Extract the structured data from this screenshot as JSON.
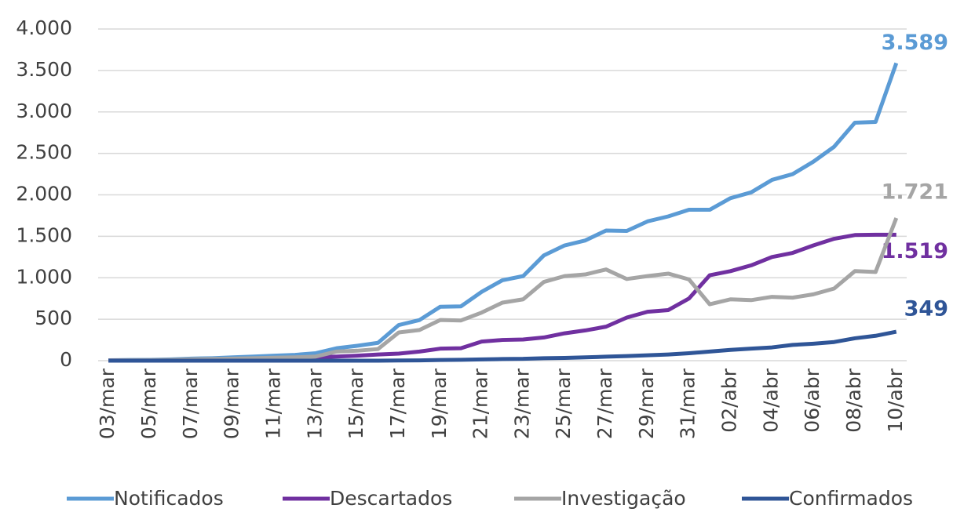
{
  "chart_data": {
    "type": "line",
    "categories": [
      "03/mar",
      null,
      "05/mar",
      null,
      "07/mar",
      null,
      "09/mar",
      null,
      "11/mar",
      null,
      "13/mar",
      null,
      "15/mar",
      null,
      "17/mar",
      null,
      "19/mar",
      null,
      "21/mar",
      null,
      "23/mar",
      null,
      "25/mar",
      null,
      "27/mar",
      null,
      "29/mar",
      null,
      "31/mar",
      null,
      "02/abr",
      null,
      "04/abr",
      null,
      "06/abr",
      null,
      "08/abr",
      null,
      "10/abr"
    ],
    "series": [
      {
        "name": "Notificados",
        "color": "#5b9bd5",
        "values": [
          5,
          8,
          10,
          15,
          25,
          30,
          40,
          50,
          60,
          70,
          90,
          150,
          180,
          215,
          430,
          490,
          650,
          655,
          830,
          970,
          1020,
          1270,
          1390,
          1450,
          1570,
          1565,
          1680,
          1740,
          1820,
          1820,
          1960,
          2030,
          2180,
          2250,
          2400,
          2580,
          2870,
          2880,
          3589
        ],
        "value_labels": [
          null,
          null,
          null,
          null,
          null,
          null,
          null,
          null,
          null,
          null,
          null,
          null,
          null,
          null,
          null,
          null,
          null,
          null,
          null,
          null,
          null,
          null,
          null,
          null,
          null,
          null,
          null,
          null,
          null,
          null,
          null,
          null,
          null,
          null,
          null,
          null,
          null,
          null,
          "3.589"
        ]
      },
      {
        "name": "Descartados",
        "color": "#7030a0",
        "values": [
          2,
          3,
          4,
          6,
          8,
          10,
          15,
          20,
          25,
          30,
          40,
          50,
          60,
          75,
          85,
          110,
          145,
          150,
          230,
          250,
          255,
          280,
          330,
          365,
          410,
          520,
          590,
          610,
          750,
          1030,
          1080,
          1150,
          1250,
          1300,
          1390,
          1470,
          1515,
          1519,
          1519
        ],
        "value_labels": [
          null,
          null,
          null,
          null,
          null,
          null,
          null,
          null,
          null,
          null,
          null,
          null,
          null,
          null,
          null,
          null,
          null,
          null,
          null,
          null,
          null,
          null,
          null,
          null,
          null,
          null,
          null,
          null,
          null,
          null,
          null,
          null,
          null,
          null,
          null,
          null,
          null,
          null,
          "1.519"
        ]
      },
      {
        "name": "Investigação",
        "color": "#a5a5a5",
        "values": [
          3,
          5,
          6,
          9,
          17,
          20,
          25,
          30,
          35,
          40,
          50,
          110,
          120,
          140,
          340,
          370,
          490,
          485,
          580,
          700,
          740,
          950,
          1020,
          1040,
          1100,
          985,
          1020,
          1050,
          980,
          680,
          740,
          730,
          770,
          760,
          800,
          870,
          1080,
          1070,
          1721
        ],
        "value_labels": [
          null,
          null,
          null,
          null,
          null,
          null,
          null,
          null,
          null,
          null,
          null,
          null,
          null,
          null,
          null,
          null,
          null,
          null,
          null,
          null,
          null,
          null,
          null,
          null,
          null,
          null,
          null,
          null,
          null,
          null,
          null,
          null,
          null,
          null,
          null,
          null,
          null,
          null,
          "1.721"
        ]
      },
      {
        "name": "Confirmados",
        "color": "#2f5597",
        "values": [
          0,
          0,
          0,
          0,
          0,
          0,
          0,
          0,
          0,
          0,
          0,
          0,
          0,
          0,
          2,
          4,
          8,
          11,
          15,
          20,
          22,
          30,
          33,
          40,
          48,
          55,
          65,
          75,
          90,
          110,
          130,
          145,
          160,
          190,
          205,
          225,
          270,
          300,
          349
        ]
      }
    ],
    "ylim": [
      0,
      4000
    ],
    "yticks": [
      0,
      500,
      {
        "value": 1000,
        "label": "1.000"
      },
      {
        "value": 1500,
        "label": "1.500"
      },
      {
        "value": 2000,
        "label": "2.000"
      },
      {
        "value": 2500,
        "label": "2.500"
      },
      {
        "value": 3000,
        "label": "3.000"
      },
      {
        "value": 3500,
        "label": "3.500"
      },
      {
        "value": 4000,
        "label": "4.000"
      }
    ],
    "grid": true,
    "legend": "bottom"
  }
}
